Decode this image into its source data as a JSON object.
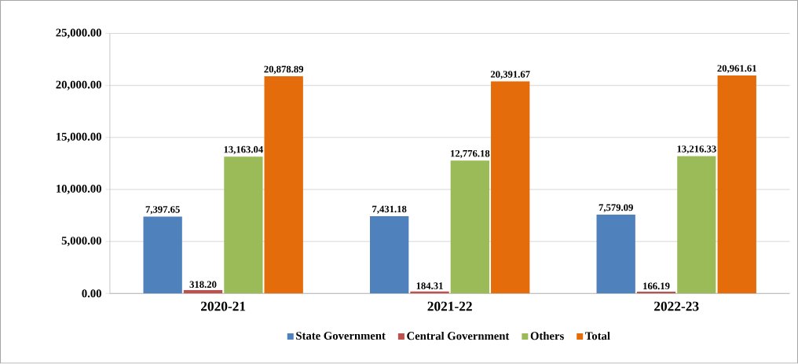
{
  "chart_data": {
    "type": "bar",
    "categories": [
      "2020-21",
      "2021-22",
      "2022-23"
    ],
    "series": [
      {
        "name": "State Government",
        "color": "#4f81bd",
        "values": [
          7397.65,
          7431.18,
          7579.09
        ],
        "value_labels": [
          "7,397.65",
          "7,431.18",
          "7,579.09"
        ]
      },
      {
        "name": "Central Government",
        "color": "#c0504d",
        "values": [
          318.2,
          184.31,
          166.19
        ],
        "value_labels": [
          "318.20",
          "184.31",
          "166.19"
        ]
      },
      {
        "name": "Others",
        "color": "#9bbb59",
        "values": [
          13163.04,
          12776.18,
          13216.33
        ],
        "value_labels": [
          "13,163.04",
          "12,776.18",
          "13,216.33"
        ]
      },
      {
        "name": "Total",
        "color": "#e46c0a",
        "values": [
          20878.89,
          20391.67,
          20961.61
        ],
        "value_labels": [
          "20,878.89",
          "20,391.67",
          "20,961.61"
        ]
      }
    ],
    "ylim": [
      0,
      25000
    ],
    "yticks": [
      {
        "value": 0,
        "label": "0.00"
      },
      {
        "value": 5000,
        "label": "5,000.00"
      },
      {
        "value": 10000,
        "label": "10,000.00"
      },
      {
        "value": 15000,
        "label": "15,000.00"
      },
      {
        "value": 20000,
        "label": "20,000.00"
      },
      {
        "value": 25000,
        "label": "25,000.00"
      }
    ],
    "grid": "y",
    "legend": "bottom"
  }
}
